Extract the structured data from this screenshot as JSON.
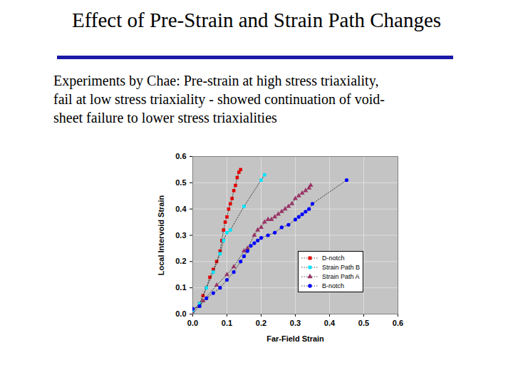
{
  "chart_data": {
    "type": "scatter",
    "title": "Effect of Pre-Strain and Strain Path Changes",
    "subtitle": "Experiments by Chae:  Pre-strain at high stress triaxiality, fail at low stress triaxiality - showed continuation of void-sheet failure to lower stress triaxialities",
    "x_label": "Far-Field Strain",
    "y_label": "Local Intervoid Strain",
    "xlim": [
      0,
      0.6
    ],
    "ylim": [
      0,
      0.6
    ],
    "xticks": [
      {
        "value": 0,
        "label": "0.0"
      },
      0.1,
      0.2,
      0.3,
      0.4,
      0.5,
      0.6
    ],
    "yticks": [
      {
        "value": 0,
        "label": "0.0"
      },
      0.1,
      0.2,
      0.3,
      0.4,
      0.5,
      0.6
    ],
    "grid": true,
    "legend": "lower right",
    "series": [
      {
        "name": "D-notch",
        "color": "#e00000",
        "marker": "square",
        "line_style": "dotted",
        "x": [
          0.0,
          0.02,
          0.03,
          0.04,
          0.05,
          0.06,
          0.07,
          0.08,
          0.085,
          0.09,
          0.095,
          0.1,
          0.105,
          0.11,
          0.115,
          0.12,
          0.125,
          0.13,
          0.135,
          0.14
        ],
        "values": [
          0.01,
          0.04,
          0.07,
          0.1,
          0.14,
          0.17,
          0.2,
          0.24,
          0.28,
          0.32,
          0.35,
          0.37,
          0.4,
          0.42,
          0.44,
          0.47,
          0.49,
          0.52,
          0.54,
          0.55
        ]
      },
      {
        "name": "Strain Path B",
        "color": "#00e5ff",
        "marker": "square",
        "line_style": "dotted",
        "x": [
          0.0,
          0.02,
          0.04,
          0.06,
          0.08,
          0.09,
          0.1,
          0.11,
          0.15,
          0.2,
          0.21
        ],
        "values": [
          0.01,
          0.04,
          0.1,
          0.16,
          0.23,
          0.28,
          0.31,
          0.32,
          0.41,
          0.51,
          0.53
        ]
      },
      {
        "name": "Strain Path A",
        "color": "#993366",
        "marker": "triangle",
        "line_style": "dotted",
        "x": [
          0.0,
          0.03,
          0.07,
          0.1,
          0.12,
          0.15,
          0.16,
          0.18,
          0.19,
          0.2,
          0.21,
          0.22,
          0.23,
          0.24,
          0.25,
          0.26,
          0.27,
          0.28,
          0.29,
          0.3,
          0.31,
          0.32,
          0.33,
          0.34,
          0.345
        ],
        "values": [
          0.0,
          0.05,
          0.11,
          0.15,
          0.18,
          0.24,
          0.25,
          0.3,
          0.32,
          0.33,
          0.35,
          0.36,
          0.36,
          0.37,
          0.38,
          0.39,
          0.4,
          0.41,
          0.42,
          0.44,
          0.45,
          0.46,
          0.47,
          0.48,
          0.49
        ]
      },
      {
        "name": "B-notch",
        "color": "#0000ff",
        "marker": "circle",
        "line_style": "dotted",
        "x": [
          0.0,
          0.02,
          0.04,
          0.06,
          0.08,
          0.1,
          0.12,
          0.14,
          0.15,
          0.16,
          0.17,
          0.18,
          0.19,
          0.2,
          0.22,
          0.24,
          0.26,
          0.28,
          0.3,
          0.31,
          0.32,
          0.33,
          0.34,
          0.35,
          0.45
        ],
        "values": [
          0.02,
          0.03,
          0.06,
          0.08,
          0.1,
          0.13,
          0.16,
          0.2,
          0.22,
          0.24,
          0.26,
          0.27,
          0.28,
          0.29,
          0.3,
          0.31,
          0.33,
          0.34,
          0.36,
          0.37,
          0.38,
          0.39,
          0.4,
          0.42,
          0.51
        ]
      }
    ]
  }
}
